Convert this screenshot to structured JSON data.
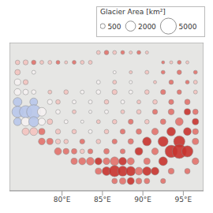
{
  "chart_data": {
    "type": "scatter",
    "xlim": [
      73.5,
      97.5
    ],
    "xticks": [
      {
        "value": 80,
        "label": "80°E"
      },
      {
        "value": 85,
        "label": "85°E"
      },
      {
        "value": 90,
        "label": "90°E"
      },
      {
        "value": 95,
        "label": "95°E"
      }
    ],
    "ylim": [
      26.5,
      41.5
    ],
    "tick_labels": "x",
    "grid": true,
    "size_legend": {
      "title": "Glacier Area [km²]",
      "values": [
        500,
        2000,
        5000
      ]
    },
    "points": [
      {
        "x": 84.5,
        "y": 40.5,
        "size": 300,
        "color": "#f3c3bf"
      },
      {
        "x": 85.5,
        "y": 40.5,
        "size": 400,
        "color": "#e2716a"
      },
      {
        "x": 86.5,
        "y": 40.5,
        "size": 300,
        "color": "#f3c3bf"
      },
      {
        "x": 87.5,
        "y": 40.5,
        "size": 300,
        "color": "#e2716a"
      },
      {
        "x": 88.5,
        "y": 40.5,
        "size": 200,
        "color": "#f3c3bf"
      },
      {
        "x": 89.5,
        "y": 40.5,
        "size": 300,
        "color": "#e2716a"
      },
      {
        "x": 90.5,
        "y": 40.5,
        "size": 200,
        "color": "#f3c3bf"
      },
      {
        "x": 74.5,
        "y": 39.5,
        "size": 400,
        "color": "#f3c3bf"
      },
      {
        "x": 75.5,
        "y": 39.5,
        "size": 500,
        "color": "#f3c3bf"
      },
      {
        "x": 76.5,
        "y": 39.5,
        "size": 400,
        "color": "#e2716a"
      },
      {
        "x": 77.5,
        "y": 39.5,
        "size": 300,
        "color": "#f3c3bf"
      },
      {
        "x": 78.5,
        "y": 39.5,
        "size": 300,
        "color": "#f3c3bf"
      },
      {
        "x": 79.5,
        "y": 39.5,
        "size": 300,
        "color": "#e2716a"
      },
      {
        "x": 80.5,
        "y": 39.5,
        "size": 200,
        "color": "#f3c3bf"
      },
      {
        "x": 81.5,
        "y": 39.5,
        "size": 300,
        "color": "#e2716a"
      },
      {
        "x": 82.5,
        "y": 39.5,
        "size": 300,
        "color": "#f3c3bf"
      },
      {
        "x": 83.5,
        "y": 39.5,
        "size": 300,
        "color": "#f3c3bf"
      },
      {
        "x": 92.5,
        "y": 39.5,
        "size": 200,
        "color": "#e2716a"
      },
      {
        "x": 93.5,
        "y": 39.5,
        "size": 200,
        "color": "#f3c3bf"
      },
      {
        "x": 94.5,
        "y": 39.5,
        "size": 300,
        "color": "#e2716a"
      },
      {
        "x": 95.5,
        "y": 39.5,
        "size": 200,
        "color": "#f3c3bf"
      },
      {
        "x": 74.5,
        "y": 38.5,
        "size": 600,
        "color": "#f3c3bf"
      },
      {
        "x": 76.5,
        "y": 38.5,
        "size": 300,
        "color": "#f5f1f1"
      },
      {
        "x": 86.5,
        "y": 38.5,
        "size": 200,
        "color": "#f5f1f1"
      },
      {
        "x": 88.5,
        "y": 38.5,
        "size": 200,
        "color": "#f3c3bf"
      },
      {
        "x": 90.5,
        "y": 38.5,
        "size": 300,
        "color": "#f3c3bf"
      },
      {
        "x": 92.5,
        "y": 38.5,
        "size": 300,
        "color": "#e2716a"
      },
      {
        "x": 94.5,
        "y": 38.5,
        "size": 400,
        "color": "#e2716a"
      },
      {
        "x": 96.5,
        "y": 38.5,
        "size": 300,
        "color": "#e2716a"
      },
      {
        "x": 74.5,
        "y": 37.5,
        "size": 800,
        "color": "#f5f1f1"
      },
      {
        "x": 75.5,
        "y": 37.5,
        "size": 500,
        "color": "#f3c3bf"
      },
      {
        "x": 84.5,
        "y": 37.5,
        "size": 300,
        "color": "#f5f1f1"
      },
      {
        "x": 86.5,
        "y": 37.5,
        "size": 300,
        "color": "#f3c3bf"
      },
      {
        "x": 88.5,
        "y": 37.5,
        "size": 200,
        "color": "#f5f1f1"
      },
      {
        "x": 91.5,
        "y": 37.5,
        "size": 200,
        "color": "#f3c3bf"
      },
      {
        "x": 93.5,
        "y": 37.5,
        "size": 400,
        "color": "#e2716a"
      },
      {
        "x": 95.5,
        "y": 37.5,
        "size": 300,
        "color": "#e2716a"
      },
      {
        "x": 96.5,
        "y": 37.5,
        "size": 300,
        "color": "#f3c3bf"
      },
      {
        "x": 74.5,
        "y": 36.5,
        "size": 900,
        "color": "#f5f1f1"
      },
      {
        "x": 75.5,
        "y": 36.5,
        "size": 600,
        "color": "#f5f1f1"
      },
      {
        "x": 76.5,
        "y": 36.5,
        "size": 400,
        "color": "#f5f1f1"
      },
      {
        "x": 78.5,
        "y": 36.5,
        "size": 300,
        "color": "#f3c3bf"
      },
      {
        "x": 80.5,
        "y": 36.5,
        "size": 400,
        "color": "#f3c3bf"
      },
      {
        "x": 82.5,
        "y": 36.5,
        "size": 300,
        "color": "#f5f1f1"
      },
      {
        "x": 84.5,
        "y": 36.5,
        "size": 400,
        "color": "#f5f1f1"
      },
      {
        "x": 86.5,
        "y": 36.5,
        "size": 500,
        "color": "#f3c3bf"
      },
      {
        "x": 88.5,
        "y": 36.5,
        "size": 300,
        "color": "#f5f1f1"
      },
      {
        "x": 90.5,
        "y": 36.5,
        "size": 400,
        "color": "#f3c3bf"
      },
      {
        "x": 92.5,
        "y": 36.5,
        "size": 500,
        "color": "#e2716a"
      },
      {
        "x": 94.5,
        "y": 36.5,
        "size": 400,
        "color": "#e2716a"
      },
      {
        "x": 96.5,
        "y": 36.5,
        "size": 300,
        "color": "#f3c3bf"
      },
      {
        "x": 74.5,
        "y": 35.5,
        "size": 1500,
        "color": "#b8c6ea"
      },
      {
        "x": 76.5,
        "y": 35.5,
        "size": 1200,
        "color": "#b8c6ea"
      },
      {
        "x": 78.5,
        "y": 35.5,
        "size": 500,
        "color": "#f5f1f1"
      },
      {
        "x": 79.5,
        "y": 35.5,
        "size": 400,
        "color": "#f3c3bf"
      },
      {
        "x": 81.5,
        "y": 35.5,
        "size": 300,
        "color": "#f5f1f1"
      },
      {
        "x": 83.5,
        "y": 35.5,
        "size": 300,
        "color": "#f5f1f1"
      },
      {
        "x": 85.5,
        "y": 35.5,
        "size": 400,
        "color": "#f3c3bf"
      },
      {
        "x": 87.5,
        "y": 35.5,
        "size": 300,
        "color": "#f5f1f1"
      },
      {
        "x": 89.5,
        "y": 35.5,
        "size": 300,
        "color": "#f3c3bf"
      },
      {
        "x": 91.5,
        "y": 35.5,
        "size": 400,
        "color": "#f3c3bf"
      },
      {
        "x": 93.5,
        "y": 35.5,
        "size": 500,
        "color": "#e2716a"
      },
      {
        "x": 95.5,
        "y": 35.5,
        "size": 600,
        "color": "#e2716a"
      },
      {
        "x": 74.5,
        "y": 34.5,
        "size": 2500,
        "color": "#b8c6ea"
      },
      {
        "x": 75.5,
        "y": 34.5,
        "size": 3000,
        "color": "#b8c6ea"
      },
      {
        "x": 76.5,
        "y": 34.5,
        "size": 4000,
        "color": "#b8c6ea"
      },
      {
        "x": 77.5,
        "y": 34.5,
        "size": 1500,
        "color": "#f5f1f1"
      },
      {
        "x": 79.5,
        "y": 34.5,
        "size": 400,
        "color": "#f5f1f1"
      },
      {
        "x": 81.5,
        "y": 34.5,
        "size": 300,
        "color": "#f3c3bf"
      },
      {
        "x": 83.5,
        "y": 34.5,
        "size": 200,
        "color": "#f5f1f1"
      },
      {
        "x": 85.5,
        "y": 34.5,
        "size": 300,
        "color": "#f5f1f1"
      },
      {
        "x": 87.5,
        "y": 34.5,
        "size": 300,
        "color": "#f3c3bf"
      },
      {
        "x": 89.5,
        "y": 34.5,
        "size": 400,
        "color": "#f3c3bf"
      },
      {
        "x": 91.5,
        "y": 34.5,
        "size": 500,
        "color": "#e2716a"
      },
      {
        "x": 93.5,
        "y": 34.5,
        "size": 700,
        "color": "#e2716a"
      },
      {
        "x": 95.5,
        "y": 34.5,
        "size": 800,
        "color": "#c8332e"
      },
      {
        "x": 96.5,
        "y": 34.5,
        "size": 600,
        "color": "#e2716a"
      },
      {
        "x": 74.5,
        "y": 33.5,
        "size": 1200,
        "color": "#b8c6ea"
      },
      {
        "x": 75.5,
        "y": 33.5,
        "size": 1500,
        "color": "#f5f1f1"
      },
      {
        "x": 76.5,
        "y": 33.5,
        "size": 2000,
        "color": "#b8c6ea"
      },
      {
        "x": 77.5,
        "y": 33.5,
        "size": 1000,
        "color": "#f5f1f1"
      },
      {
        "x": 78.5,
        "y": 33.5,
        "size": 600,
        "color": "#f3c3bf"
      },
      {
        "x": 80.5,
        "y": 33.5,
        "size": 300,
        "color": "#f5f1f1"
      },
      {
        "x": 82.5,
        "y": 33.5,
        "size": 200,
        "color": "#f5f1f1"
      },
      {
        "x": 84.5,
        "y": 33.5,
        "size": 300,
        "color": "#f3c3bf"
      },
      {
        "x": 86.5,
        "y": 33.5,
        "size": 400,
        "color": "#f3c3bf"
      },
      {
        "x": 88.5,
        "y": 33.5,
        "size": 500,
        "color": "#e2716a"
      },
      {
        "x": 90.5,
        "y": 33.5,
        "size": 400,
        "color": "#f3c3bf"
      },
      {
        "x": 92.5,
        "y": 33.5,
        "size": 600,
        "color": "#e2716a"
      },
      {
        "x": 94.5,
        "y": 33.5,
        "size": 1200,
        "color": "#e2716a"
      },
      {
        "x": 96.5,
        "y": 33.5,
        "size": 800,
        "color": "#c8332e"
      },
      {
        "x": 75.5,
        "y": 32.5,
        "size": 1000,
        "color": "#f3c3bf"
      },
      {
        "x": 76.5,
        "y": 32.5,
        "size": 1200,
        "color": "#f3c3bf"
      },
      {
        "x": 77.5,
        "y": 32.5,
        "size": 800,
        "color": "#e2716a"
      },
      {
        "x": 79.5,
        "y": 32.5,
        "size": 500,
        "color": "#f3c3bf"
      },
      {
        "x": 81.5,
        "y": 32.5,
        "size": 400,
        "color": "#f3c3bf"
      },
      {
        "x": 83.5,
        "y": 32.5,
        "size": 300,
        "color": "#f5f1f1"
      },
      {
        "x": 85.5,
        "y": 32.5,
        "size": 400,
        "color": "#f3c3bf"
      },
      {
        "x": 87.5,
        "y": 32.5,
        "size": 500,
        "color": "#e2716a"
      },
      {
        "x": 89.5,
        "y": 32.5,
        "size": 600,
        "color": "#e2716a"
      },
      {
        "x": 91.5,
        "y": 32.5,
        "size": 900,
        "color": "#e2716a"
      },
      {
        "x": 93.5,
        "y": 32.5,
        "size": 1500,
        "color": "#c8332e"
      },
      {
        "x": 95.5,
        "y": 32.5,
        "size": 1200,
        "color": "#c8332e"
      },
      {
        "x": 96.5,
        "y": 32.5,
        "size": 700,
        "color": "#e2716a"
      },
      {
        "x": 77.5,
        "y": 31.5,
        "size": 900,
        "color": "#e2716a"
      },
      {
        "x": 78.5,
        "y": 31.5,
        "size": 800,
        "color": "#e2716a"
      },
      {
        "x": 79.5,
        "y": 31.5,
        "size": 500,
        "color": "#f3c3bf"
      },
      {
        "x": 80.5,
        "y": 31.5,
        "size": 400,
        "color": "#f3c3bf"
      },
      {
        "x": 82.5,
        "y": 31.5,
        "size": 500,
        "color": "#e2716a"
      },
      {
        "x": 84.5,
        "y": 31.5,
        "size": 400,
        "color": "#f3c3bf"
      },
      {
        "x": 86.5,
        "y": 31.5,
        "size": 500,
        "color": "#e2716a"
      },
      {
        "x": 88.5,
        "y": 31.5,
        "size": 600,
        "color": "#e2716a"
      },
      {
        "x": 90.5,
        "y": 31.5,
        "size": 1500,
        "color": "#c8332e"
      },
      {
        "x": 92.5,
        "y": 31.5,
        "size": 2000,
        "color": "#c8332e"
      },
      {
        "x": 94.5,
        "y": 31.5,
        "size": 2500,
        "color": "#c8332e"
      },
      {
        "x": 96.5,
        "y": 31.5,
        "size": 800,
        "color": "#e2716a"
      },
      {
        "x": 79.5,
        "y": 30.5,
        "size": 1000,
        "color": "#e2716a"
      },
      {
        "x": 80.5,
        "y": 30.5,
        "size": 700,
        "color": "#e2716a"
      },
      {
        "x": 81.5,
        "y": 30.5,
        "size": 600,
        "color": "#e2716a"
      },
      {
        "x": 82.5,
        "y": 30.5,
        "size": 400,
        "color": "#f3c3bf"
      },
      {
        "x": 83.5,
        "y": 30.5,
        "size": 500,
        "color": "#e2716a"
      },
      {
        "x": 85.5,
        "y": 30.5,
        "size": 600,
        "color": "#e2716a"
      },
      {
        "x": 87.5,
        "y": 30.5,
        "size": 500,
        "color": "#e2716a"
      },
      {
        "x": 89.5,
        "y": 30.5,
        "size": 1200,
        "color": "#c8332e"
      },
      {
        "x": 91.5,
        "y": 30.5,
        "size": 900,
        "color": "#e2716a"
      },
      {
        "x": 93.5,
        "y": 30.5,
        "size": 3000,
        "color": "#c8332e"
      },
      {
        "x": 94.5,
        "y": 30.5,
        "size": 4000,
        "color": "#c8332e"
      },
      {
        "x": 95.5,
        "y": 30.5,
        "size": 2500,
        "color": "#c8332e"
      },
      {
        "x": 81.5,
        "y": 29.5,
        "size": 800,
        "color": "#e2716a"
      },
      {
        "x": 82.5,
        "y": 29.5,
        "size": 1000,
        "color": "#e2716a"
      },
      {
        "x": 83.5,
        "y": 29.5,
        "size": 1200,
        "color": "#e2716a"
      },
      {
        "x": 84.5,
        "y": 29.5,
        "size": 1000,
        "color": "#c8332e"
      },
      {
        "x": 85.5,
        "y": 29.5,
        "size": 900,
        "color": "#e2716a"
      },
      {
        "x": 86.5,
        "y": 29.5,
        "size": 1500,
        "color": "#e2716a"
      },
      {
        "x": 87.5,
        "y": 29.5,
        "size": 1200,
        "color": "#c8332e"
      },
      {
        "x": 88.5,
        "y": 29.5,
        "size": 1000,
        "color": "#e2716a"
      },
      {
        "x": 90.5,
        "y": 29.5,
        "size": 800,
        "color": "#e2716a"
      },
      {
        "x": 92.5,
        "y": 29.5,
        "size": 1500,
        "color": "#c8332e"
      },
      {
        "x": 96.5,
        "y": 29.5,
        "size": 900,
        "color": "#e2716a"
      },
      {
        "x": 84.5,
        "y": 28.5,
        "size": 800,
        "color": "#e2716a"
      },
      {
        "x": 85.5,
        "y": 28.5,
        "size": 1500,
        "color": "#c8332e"
      },
      {
        "x": 86.5,
        "y": 28.5,
        "size": 2500,
        "color": "#c8332e"
      },
      {
        "x": 87.5,
        "y": 28.5,
        "size": 2000,
        "color": "#c8332e"
      },
      {
        "x": 88.5,
        "y": 28.5,
        "size": 1800,
        "color": "#c8332e"
      },
      {
        "x": 89.5,
        "y": 28.5,
        "size": 1200,
        "color": "#e2716a"
      },
      {
        "x": 90.5,
        "y": 28.5,
        "size": 1500,
        "color": "#c8332e"
      },
      {
        "x": 91.5,
        "y": 28.5,
        "size": 1200,
        "color": "#c8332e"
      },
      {
        "x": 93.5,
        "y": 28.5,
        "size": 700,
        "color": "#e2716a"
      },
      {
        "x": 95.5,
        "y": 28.5,
        "size": 600,
        "color": "#e2716a"
      },
      {
        "x": 86.5,
        "y": 27.5,
        "size": 600,
        "color": "#e2716a"
      },
      {
        "x": 87.5,
        "y": 27.5,
        "size": 800,
        "color": "#e2716a"
      },
      {
        "x": 88.5,
        "y": 27.5,
        "size": 1000,
        "color": "#c8332e"
      },
      {
        "x": 89.5,
        "y": 27.5,
        "size": 700,
        "color": "#e2716a"
      },
      {
        "x": 90.5,
        "y": 27.5,
        "size": 600,
        "color": "#e2716a"
      },
      {
        "x": 92.5,
        "y": 27.5,
        "size": 500,
        "color": "#e2716a"
      }
    ]
  }
}
